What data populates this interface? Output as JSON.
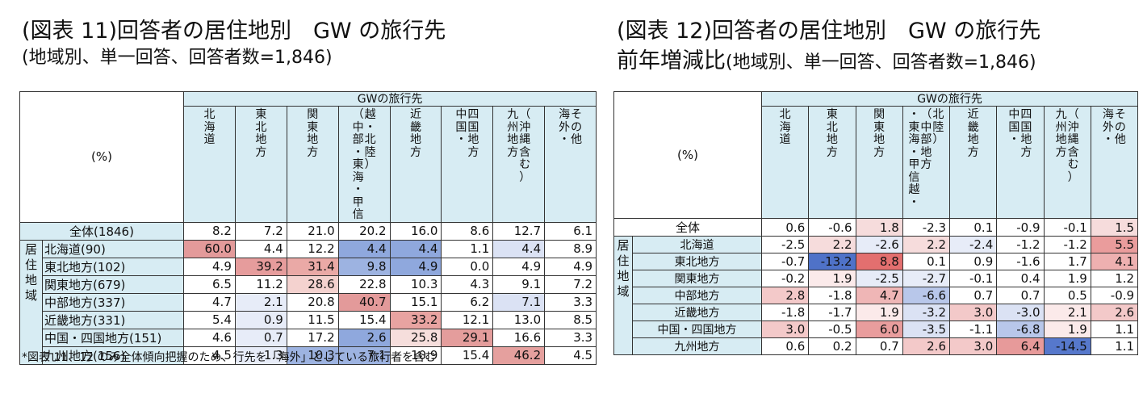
{
  "left": {
    "title": "(図表 11)回答者の居住地別　GW の旅行先",
    "subtitle": "(地域別、単一回答、回答者数=1,846)",
    "header_span": "GWの旅行先",
    "corner": "(%)",
    "columns": [
      "北海道",
      "東北地方",
      "関東地方",
      "（中部地方越・東海・甲信北陸）",
      "近畿地方",
      "中国・四国地方",
      "（沖縄含む）九州地方",
      "その他・海外"
    ],
    "col_lines": [
      [
        "北海道"
      ],
      [
        "東北地方"
      ],
      [
        "関東地方"
      ],
      [
        "越・北陸）",
        "（中部・東海・甲信"
      ],
      [
        "近畿地方"
      ],
      [
        "四国地方",
        "中国・"
      ],
      [
        "（沖縄含む）",
        "九州地方"
      ],
      [
        "その他",
        "海外・"
      ]
    ],
    "side_label": [
      "居",
      "住",
      "地",
      "域"
    ],
    "total_label": "全体(1846)",
    "total": [
      "8.2",
      "7.2",
      "21.0",
      "20.2",
      "16.0",
      "8.6",
      "12.7",
      "6.1"
    ],
    "rows": [
      {
        "label": "北海道(90)",
        "values": [
          "60.0",
          "4.4",
          "12.2",
          "4.4",
          "4.4",
          "1.1",
          "4.4",
          "8.9"
        ]
      },
      {
        "label": "東北地方(102)",
        "values": [
          "4.9",
          "39.2",
          "31.4",
          "9.8",
          "4.9",
          "0.0",
          "4.9",
          "4.9"
        ]
      },
      {
        "label": "関東地方(679)",
        "values": [
          "6.5",
          "11.2",
          "28.6",
          "22.8",
          "10.3",
          "4.3",
          "9.1",
          "7.2"
        ]
      },
      {
        "label": "中部地方(337)",
        "values": [
          "4.7",
          "2.1",
          "20.8",
          "40.7",
          "15.1",
          "6.2",
          "7.1",
          "3.3"
        ]
      },
      {
        "label": "近畿地方(331)",
        "values": [
          "5.4",
          "0.9",
          "11.5",
          "15.4",
          "33.2",
          "12.1",
          "13.0",
          "8.5"
        ]
      },
      {
        "label": "中国・四国地方(151)",
        "values": [
          "4.6",
          "0.7",
          "17.2",
          "2.6",
          "25.8",
          "29.1",
          "16.6",
          "3.3"
        ]
      },
      {
        "label": "九州地方(156)",
        "values": [
          "4.5",
          "1.3",
          "10.3",
          "7.1",
          "10.9",
          "15.4",
          "46.2",
          "4.5"
        ]
      }
    ],
    "colors": [
      [
        "#e39a9a",
        "#ffffff",
        "#ffffff",
        "#8fa8dd",
        "#8fa8dd",
        "#ffffff",
        "#dbe2f4",
        "#ffffff"
      ],
      [
        "#ffffff",
        "#e69c9c",
        "#eaa9a6",
        "#9db3e1",
        "#8fa8dd",
        "#ffffff",
        "#ffffff",
        "#ffffff"
      ],
      [
        "#ffffff",
        "#ffffff",
        "#f4d2cf",
        "#ffffff",
        "#ffffff",
        "#ffffff",
        "#ffffff",
        "#ffffff"
      ],
      [
        "#ffffff",
        "#e7ecf8",
        "#ffffff",
        "#e39a9a",
        "#ffffff",
        "#ffffff",
        "#dbe2f4",
        "#ffffff"
      ],
      [
        "#ffffff",
        "#e7ecf8",
        "#ffffff",
        "#ffffff",
        "#e8a3a1",
        "#ffffff",
        "#ffffff",
        "#ffffff"
      ],
      [
        "#ffffff",
        "#e7ecf8",
        "#ffffff",
        "#8fa8dd",
        "#f6dedc",
        "#e49d9c",
        "#ffffff",
        "#ffffff"
      ],
      [
        "#ffffff",
        "#e7ecf8",
        "#9db3e1",
        "#9db3e1",
        "#ffffff",
        "#ffffff",
        "#e5a09e",
        "#ffffff"
      ]
    ]
  },
  "right": {
    "title": "(図表 12)回答者の居住地別　GW の旅行先",
    "subtitle_main": "前年増減比",
    "subtitle_paren": "(地域別、単一回答、回答者数=1,846)",
    "header_span": "GWの旅行先",
    "corner": "(%)",
    "col_lines": [
      [
        "北海道"
      ],
      [
        "東北地方"
      ],
      [
        "関東地方"
      ],
      [
        "北陸）",
        "（中部地方",
        "・東海・甲信越・"
      ],
      [
        "近畿地方"
      ],
      [
        "四国地方",
        "中国・"
      ],
      [
        "（沖縄含む）",
        "九州地方"
      ],
      [
        "その他",
        "海外・"
      ]
    ],
    "side_label": [
      "居",
      "住",
      "地",
      "域"
    ],
    "total_label": "全体",
    "total": [
      "0.6",
      "-0.6",
      "1.8",
      "-2.3",
      "0.1",
      "-0.9",
      "-0.1",
      "1.5"
    ],
    "rows": [
      {
        "label": "北海道",
        "values": [
          "-2.5",
          "2.2",
          "-2.6",
          "2.2",
          "-2.4",
          "-1.2",
          "-1.2",
          "5.5"
        ]
      },
      {
        "label": "東北地方",
        "values": [
          "-0.7",
          "-13.2",
          "8.8",
          "0.1",
          "0.9",
          "-1.6",
          "1.7",
          "4.1"
        ]
      },
      {
        "label": "関東地方",
        "values": [
          "-0.2",
          "1.9",
          "-2.5",
          "-2.7",
          "-0.1",
          "0.4",
          "1.9",
          "1.2"
        ]
      },
      {
        "label": "中部地方",
        "values": [
          "2.8",
          "-1.8",
          "4.7",
          "-6.6",
          "0.7",
          "0.7",
          "0.5",
          "-0.9"
        ]
      },
      {
        "label": "近畿地方",
        "values": [
          "-1.8",
          "-1.7",
          "1.9",
          "-3.2",
          "3.0",
          "-3.0",
          "2.1",
          "2.6"
        ]
      },
      {
        "label": "中国・四国地方",
        "values": [
          "3.0",
          "-0.5",
          "6.0",
          "-3.5",
          "-1.1",
          "-6.8",
          "1.9",
          "1.1"
        ]
      },
      {
        "label": "九州地方",
        "values": [
          "0.6",
          "0.2",
          "0.7",
          "2.6",
          "3.0",
          "6.4",
          "-14.5",
          "1.1"
        ]
      }
    ],
    "total_colors": [
      "#ffffff",
      "#ffffff",
      "#f6dcdc",
      "#ffffff",
      "#ffffff",
      "#ffffff",
      "#ffffff",
      "#f6dcdc"
    ],
    "colors": [
      [
        "#ffffff",
        "#f6dcdc",
        "#e7ecf8",
        "#f6dcdc",
        "#e7ecf8",
        "#ffffff",
        "#ffffff",
        "#ea9c9c"
      ],
      [
        "#ffffff",
        "#4f72c8",
        "#e36f6f",
        "#ffffff",
        "#ffffff",
        "#ffffff",
        "#ffffff",
        "#eeb0b0"
      ],
      [
        "#ffffff",
        "#fbeaea",
        "#e7ecf8",
        "#e7ecf8",
        "#ffffff",
        "#ffffff",
        "#ffffff",
        "#ffffff"
      ],
      [
        "#f3c9c9",
        "#ffffff",
        "#efb6b6",
        "#b8c7ea",
        "#ffffff",
        "#ffffff",
        "#ffffff",
        "#ffffff"
      ],
      [
        "#ffffff",
        "#ffffff",
        "#fbeaea",
        "#dbe2f4",
        "#f3c9c9",
        "#dbe2f4",
        "#fbeaea",
        "#f3c9c9"
      ],
      [
        "#f3c9c9",
        "#ffffff",
        "#e99d9d",
        "#dbe2f4",
        "#ffffff",
        "#b8c7ea",
        "#fbeaea",
        "#ffffff"
      ],
      [
        "#ffffff",
        "#ffffff",
        "#ffffff",
        "#f3c9c9",
        "#f3c9c9",
        "#e79a9a",
        "#5678cc",
        "#ffffff"
      ]
    ]
  },
  "note": "*図表 11、12 のみ全体傾向把握のため、行先を「海外」としている旅行者を含む"
}
